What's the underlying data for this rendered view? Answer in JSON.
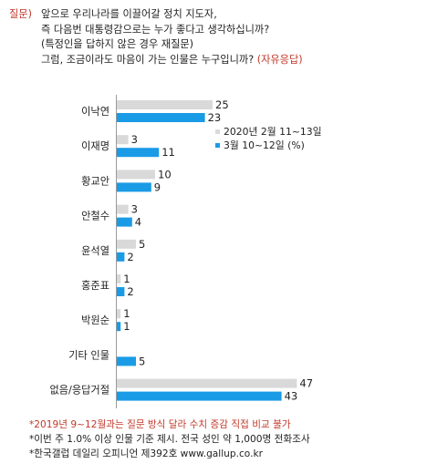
{
  "question": {
    "tag": "질문)",
    "lines": [
      "앞으로 우리나라를 이끌어갈 정치 지도자,",
      "즉 다음번 대통령감으로는 누가 좋다고 생각하십니까?",
      "(특정인을 답하지 않은 경우 재질문)",
      "그럼, 조금이라도 마음이 가는 인물은 누구입니까?"
    ],
    "note": "(자유응답)"
  },
  "chart_data": {
    "type": "bar",
    "orientation": "horizontal",
    "categories": [
      "이낙연",
      "이재명",
      "황교안",
      "안철수",
      "윤석열",
      "홍준표",
      "박원순",
      "기타 인물",
      "없음/응답거절"
    ],
    "series": [
      {
        "name": "2020년 2월 11~13일",
        "color": "#d9d9d9",
        "values": [
          25,
          3,
          10,
          3,
          5,
          1,
          1,
          null,
          47
        ]
      },
      {
        "name": "3월 10~12일 (%)",
        "color": "#1a9be6",
        "values": [
          23,
          11,
          9,
          4,
          2,
          2,
          1,
          5,
          43
        ]
      }
    ],
    "legend_position": "right",
    "grid": false
  },
  "footnotes": {
    "red": "*2019년 9~12월과는 질문 방식 달라 수치 증감 직접 비교 불가",
    "lines": [
      "*이번 주 1.0% 이상 인물 기준 제시. 전국 성인 약 1,000명 전화조사",
      "*한국갤럽 데일리 오피니언 제392호 www.gallup.co.kr"
    ]
  }
}
